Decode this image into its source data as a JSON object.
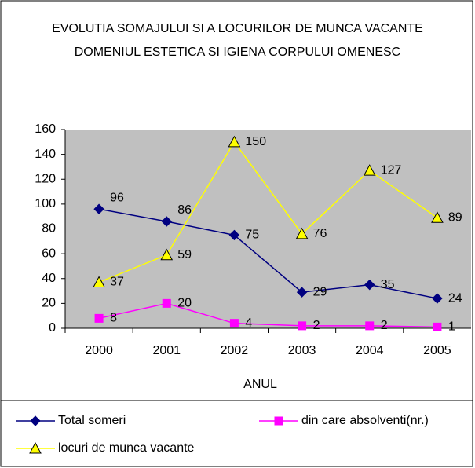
{
  "chart_data": {
    "type": "line",
    "title": "EVOLUTIA SOMAJULUI SI A LOCURILOR DE MUNCA VACANTE DOMENIUL ESTETICA SI IGIENA CORPULUI OMENESC",
    "x_label": "ANUL",
    "categories": [
      "2000",
      "2001",
      "2002",
      "2003",
      "2004",
      "2005"
    ],
    "series": [
      {
        "name": "Total someri",
        "color": "#000080",
        "marker": "diamond",
        "values": [
          96,
          86,
          75,
          29,
          35,
          24
        ]
      },
      {
        "name": "din care absolventi(nr.)",
        "color": "#ff00ff",
        "marker": "square",
        "values": [
          8,
          20,
          4,
          2,
          2,
          1
        ]
      },
      {
        "name": "locuri de munca vacante",
        "color": "#ffff00",
        "marker": "triangle",
        "values": [
          37,
          59,
          150,
          76,
          127,
          89
        ]
      }
    ],
    "ylim": [
      0,
      160
    ],
    "yticks": [
      0,
      20,
      40,
      60,
      80,
      100,
      120,
      140,
      160
    ],
    "grid": false,
    "plot_background": "#c0c0c0",
    "legend": "bottom"
  }
}
